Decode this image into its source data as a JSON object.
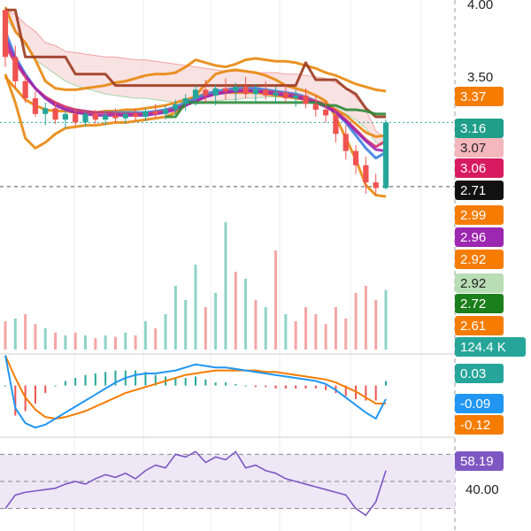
{
  "chart_data": [
    {
      "type": "candlestick",
      "panel": "price",
      "y_tick_labels": [
        "4.00",
        "3.50"
      ],
      "y_ticks": [
        4.0,
        3.5
      ],
      "ylim": [
        2.56,
        4.02
      ],
      "last_price": 3.16,
      "price_line_level": 3.16,
      "dashed_level": 2.71,
      "candles": [
        [
          3.95,
          3.95,
          3.55,
          3.62
        ],
        [
          3.62,
          3.7,
          3.4,
          3.45
        ],
        [
          3.45,
          3.5,
          3.3,
          3.33
        ],
        [
          3.33,
          3.38,
          3.2,
          3.22
        ],
        [
          3.22,
          3.3,
          3.14,
          3.26
        ],
        [
          3.26,
          3.3,
          3.15,
          3.18
        ],
        [
          3.18,
          3.24,
          3.12,
          3.22
        ],
        [
          3.22,
          3.26,
          3.14,
          3.16
        ],
        [
          3.16,
          3.24,
          3.13,
          3.22
        ],
        [
          3.22,
          3.25,
          3.15,
          3.18
        ],
        [
          3.18,
          3.24,
          3.14,
          3.21
        ],
        [
          3.21,
          3.26,
          3.16,
          3.19
        ],
        [
          3.19,
          3.24,
          3.15,
          3.22
        ],
        [
          3.22,
          3.26,
          3.17,
          3.2
        ],
        [
          3.2,
          3.26,
          3.17,
          3.24
        ],
        [
          3.24,
          3.29,
          3.19,
          3.22
        ],
        [
          3.22,
          3.28,
          3.18,
          3.25
        ],
        [
          3.25,
          3.32,
          3.21,
          3.29
        ],
        [
          3.29,
          3.36,
          3.24,
          3.33
        ],
        [
          3.33,
          3.42,
          3.28,
          3.39
        ],
        [
          3.39,
          3.46,
          3.3,
          3.35
        ],
        [
          3.35,
          3.43,
          3.28,
          3.4
        ],
        [
          3.4,
          3.47,
          3.32,
          3.38
        ],
        [
          3.38,
          3.44,
          3.31,
          3.41
        ],
        [
          3.41,
          3.48,
          3.33,
          3.36
        ],
        [
          3.36,
          3.43,
          3.3,
          3.39
        ],
        [
          3.39,
          3.45,
          3.32,
          3.35
        ],
        [
          3.35,
          3.41,
          3.29,
          3.37
        ],
        [
          3.37,
          3.43,
          3.3,
          3.33
        ],
        [
          3.33,
          3.39,
          3.27,
          3.35
        ],
        [
          3.35,
          3.4,
          3.26,
          3.29
        ],
        [
          3.29,
          3.35,
          3.2,
          3.25
        ],
        [
          3.25,
          3.31,
          3.16,
          3.21
        ],
        [
          3.21,
          3.26,
          3.02,
          3.08
        ],
        [
          3.08,
          3.14,
          2.9,
          2.96
        ],
        [
          2.96,
          3.0,
          2.8,
          2.86
        ],
        [
          2.86,
          2.92,
          2.66,
          2.74
        ],
        [
          2.74,
          2.8,
          2.65,
          2.7
        ],
        [
          2.7,
          3.18,
          2.69,
          3.16
        ]
      ],
      "indicator_lines": [
        {
          "color": "#e8870e",
          "values": [
            3.5,
            3.3,
            3.05,
            2.98,
            3.02,
            3.08,
            3.12,
            3.13,
            3.14,
            3.14,
            3.15,
            3.16,
            3.16,
            3.17,
            3.18,
            3.19,
            3.2,
            3.23,
            3.28,
            3.35,
            3.43,
            3.5,
            3.52,
            3.53,
            3.52,
            3.51,
            3.49,
            3.46,
            3.42,
            3.4,
            3.38,
            3.35,
            3.31,
            3.2,
            3.05,
            2.9,
            2.72,
            2.65,
            2.64
          ]
        },
        {
          "color": "#e8870e",
          "values": [
            3.97,
            3.8,
            3.72,
            3.6,
            3.45,
            3.4,
            3.39,
            3.39,
            3.4,
            3.41,
            3.42,
            3.44,
            3.45,
            3.47,
            3.49,
            3.5,
            3.5,
            3.51,
            3.55,
            3.6,
            3.58,
            3.56,
            3.55,
            3.57,
            3.6,
            3.61,
            3.6,
            3.59,
            3.59,
            3.58,
            3.56,
            3.54,
            3.51,
            3.49,
            3.46,
            3.43,
            3.41,
            3.39,
            3.38
          ]
        },
        {
          "color": "#e8870e",
          "values": [
            3.48,
            3.4,
            3.32,
            3.28,
            3.25,
            3.24,
            3.24,
            3.23,
            3.23,
            3.23,
            3.24,
            3.24,
            3.25,
            3.25,
            3.26,
            3.27,
            3.28,
            3.3,
            3.32,
            3.34,
            3.36,
            3.36,
            3.37,
            3.37,
            3.37,
            3.37,
            3.36,
            3.35,
            3.34,
            3.33,
            3.32,
            3.31,
            3.29,
            3.25,
            3.21,
            3.15,
            3.09,
            3.06,
            3.07
          ]
        },
        {
          "color": "#3d7fe0",
          "values": [
            3.8,
            3.62,
            3.5,
            3.4,
            3.33,
            3.29,
            3.26,
            3.25,
            3.24,
            3.23,
            3.23,
            3.23,
            3.23,
            3.23,
            3.23,
            3.24,
            3.25,
            3.27,
            3.3,
            3.33,
            3.36,
            3.38,
            3.39,
            3.4,
            3.4,
            3.4,
            3.39,
            3.38,
            3.37,
            3.36,
            3.34,
            3.31,
            3.28,
            3.23,
            3.16,
            3.07,
            2.98,
            2.91,
            2.95
          ]
        },
        {
          "color": "#d6336c",
          "values": [
            3.7,
            3.58,
            3.48,
            3.4,
            3.34,
            3.3,
            3.27,
            3.25,
            3.24,
            3.23,
            3.23,
            3.22,
            3.22,
            3.22,
            3.22,
            3.23,
            3.24,
            3.26,
            3.28,
            3.31,
            3.34,
            3.36,
            3.38,
            3.38,
            3.39,
            3.38,
            3.38,
            3.37,
            3.36,
            3.35,
            3.33,
            3.31,
            3.28,
            3.24,
            3.18,
            3.11,
            3.04,
            2.99,
            3.03
          ]
        },
        {
          "color": "#9c27b0",
          "values": [
            3.75,
            3.6,
            3.49,
            3.4,
            3.33,
            3.28,
            3.25,
            3.23,
            3.22,
            3.21,
            3.21,
            3.21,
            3.21,
            3.21,
            3.21,
            3.22,
            3.23,
            3.25,
            3.28,
            3.31,
            3.34,
            3.36,
            3.37,
            3.38,
            3.38,
            3.38,
            3.37,
            3.36,
            3.35,
            3.34,
            3.32,
            3.3,
            3.27,
            3.23,
            3.17,
            3.1,
            3.03,
            2.97,
            2.96
          ]
        },
        {
          "color": "#9b3a1f",
          "values": [
            3.95,
            3.95,
            3.62,
            3.62,
            3.62,
            3.62,
            3.62,
            3.5,
            3.5,
            3.5,
            3.5,
            3.42,
            3.42,
            3.42,
            3.42,
            3.42,
            3.42,
            3.42,
            3.42,
            3.42,
            3.42,
            3.42,
            3.42,
            3.42,
            3.42,
            3.42,
            3.42,
            3.42,
            3.42,
            3.42,
            3.58,
            3.46,
            3.46,
            3.46,
            3.4,
            3.36,
            3.26,
            3.2,
            3.2
          ]
        },
        {
          "color": "#2e8b3a",
          "values": [
            null,
            null,
            null,
            null,
            null,
            null,
            null,
            null,
            null,
            null,
            null,
            null,
            null,
            null,
            null,
            null,
            3.2,
            3.2,
            3.3,
            3.3,
            3.3,
            3.3,
            3.3,
            3.3,
            3.3,
            3.3,
            3.3,
            3.3,
            3.3,
            3.3,
            3.3,
            3.3,
            3.28,
            3.28,
            3.25,
            3.25,
            3.24,
            3.22,
            3.22
          ]
        }
      ],
      "cloud": {
        "upper": [
          3.95,
          3.92,
          3.85,
          3.8,
          3.72,
          3.7,
          3.66,
          3.65,
          3.64,
          3.63,
          3.62,
          3.62,
          3.61,
          3.6,
          3.6,
          3.59,
          3.58,
          3.57,
          3.56,
          3.55,
          3.54,
          3.53,
          3.52,
          3.52,
          3.52,
          3.51,
          3.51,
          3.51,
          3.5,
          3.5,
          3.49,
          3.48,
          3.47,
          3.44,
          3.4,
          3.34,
          3.25,
          3.1,
          3.05
        ],
        "lower": [
          3.9,
          3.8,
          3.7,
          3.6,
          3.55,
          3.5,
          3.45,
          3.42,
          3.4,
          3.38,
          3.36,
          3.35,
          3.34,
          3.33,
          3.33,
          3.32,
          3.31,
          3.3,
          3.3,
          3.29,
          3.3,
          3.31,
          3.32,
          3.32,
          3.33,
          3.33,
          3.34,
          3.34,
          3.34,
          3.33,
          3.32,
          3.3,
          3.28,
          3.26,
          3.22,
          3.18,
          3.12,
          3.02,
          3.0
        ]
      }
    },
    {
      "type": "bar",
      "panel": "volume",
      "values": [
        0.2,
        0.22,
        0.25,
        0.18,
        0.15,
        0.12,
        0.1,
        0.12,
        0.1,
        0.08,
        0.1,
        0.09,
        0.12,
        0.1,
        0.2,
        0.15,
        0.25,
        0.45,
        0.35,
        0.6,
        0.3,
        0.4,
        0.9,
        0.55,
        0.5,
        0.35,
        0.3,
        0.7,
        0.25,
        0.2,
        0.3,
        0.25,
        0.18,
        0.3,
        0.22,
        0.4,
        0.45,
        0.35,
        0.42
      ],
      "up": [
        false,
        true,
        false,
        false,
        true,
        false,
        true,
        false,
        true,
        false,
        true,
        false,
        true,
        false,
        true,
        false,
        true,
        true,
        true,
        true,
        false,
        true,
        true,
        false,
        true,
        false,
        true,
        false,
        true,
        false,
        false,
        false,
        false,
        false,
        false,
        false,
        false,
        false,
        true
      ],
      "last_volume_label": "124.4 K"
    },
    {
      "type": "line",
      "panel": "macd",
      "macd": [
        0.2,
        -0.15,
        -0.25,
        -0.28,
        -0.26,
        -0.22,
        -0.18,
        -0.14,
        -0.1,
        -0.06,
        -0.02,
        0.02,
        0.05,
        0.07,
        0.08,
        0.08,
        0.09,
        0.1,
        0.12,
        0.14,
        0.13,
        0.12,
        0.12,
        0.11,
        0.1,
        0.09,
        0.08,
        0.07,
        0.06,
        0.05,
        0.04,
        0.03,
        0.01,
        -0.03,
        -0.08,
        -0.13,
        -0.18,
        -0.22,
        -0.09
      ],
      "signal": [
        0.2,
        0.05,
        -0.08,
        -0.16,
        -0.21,
        -0.22,
        -0.21,
        -0.19,
        -0.17,
        -0.14,
        -0.11,
        -0.08,
        -0.05,
        -0.03,
        -0.01,
        0.01,
        0.03,
        0.05,
        0.07,
        0.08,
        0.09,
        0.1,
        0.1,
        0.1,
        0.1,
        0.1,
        0.09,
        0.09,
        0.08,
        0.07,
        0.06,
        0.05,
        0.04,
        0.02,
        -0.01,
        -0.04,
        -0.08,
        -0.12,
        -0.12
      ],
      "hist": [
        0.0,
        -0.2,
        -0.17,
        -0.12,
        -0.05,
        0.0,
        0.03,
        0.05,
        0.07,
        0.08,
        0.09,
        0.1,
        0.1,
        0.1,
        0.09,
        0.07,
        0.06,
        0.05,
        0.05,
        0.06,
        0.04,
        0.02,
        0.02,
        0.01,
        0.0,
        -0.01,
        -0.01,
        -0.02,
        -0.02,
        -0.02,
        -0.02,
        -0.02,
        -0.03,
        -0.05,
        -0.07,
        -0.09,
        -0.1,
        -0.1,
        0.03
      ],
      "ylim": [
        -0.32,
        0.18
      ]
    },
    {
      "type": "line",
      "panel": "rsi",
      "values": [
        30,
        40,
        42,
        43,
        44,
        45,
        48,
        50,
        48,
        52,
        55,
        53,
        56,
        52,
        58,
        62,
        60,
        70,
        68,
        72,
        64,
        68,
        66,
        72,
        60,
        62,
        58,
        56,
        52,
        50,
        48,
        46,
        44,
        42,
        40,
        30,
        25,
        35,
        58
      ],
      "y_tick_labels": [
        "40.00"
      ],
      "y_ticks": [
        40
      ],
      "levels": [
        30,
        50,
        70
      ],
      "ylim": [
        20,
        80
      ],
      "last_value": 58.19
    }
  ],
  "badges": [
    {
      "text": "3.37",
      "bg": "#f57c00",
      "fg": "#ffffff",
      "value": 3.37
    },
    {
      "text": "3.16",
      "bg": "#1f9e89",
      "fg": "#ffffff",
      "value": 3.16
    },
    {
      "text": "3.07",
      "bg": "#f4b7bd",
      "fg": "#222222",
      "value": 3.07
    },
    {
      "text": "3.06",
      "bg": "#d81b60",
      "fg": "#ffffff",
      "value": 3.06
    },
    {
      "text": "2.71",
      "bg": "#111111",
      "fg": "#ffffff",
      "value": 2.71
    },
    {
      "text": "2.99",
      "bg": "#f57c00",
      "fg": "#ffffff",
      "value": 2.99
    },
    {
      "text": "2.96",
      "bg": "#9c27b0",
      "fg": "#ffffff",
      "value": 2.96
    },
    {
      "text": "2.92",
      "bg": "#f57c00",
      "fg": "#ffffff",
      "value": 2.92
    },
    {
      "text": "2.92",
      "bg": "#b9ddb4",
      "fg": "#222222",
      "value": 2.92
    },
    {
      "text": "2.72",
      "bg": "#1b7f1b",
      "fg": "#ffffff",
      "value": 2.72
    },
    {
      "text": "2.61",
      "bg": "#f57c00",
      "fg": "#ffffff",
      "value": 2.61
    },
    {
      "text": "124.4 K",
      "bg": "#26a69a",
      "fg": "#ffffff",
      "value": 124.4
    },
    {
      "text": "0.03",
      "bg": "#26a69a",
      "fg": "#ffffff",
      "value": 0.03
    },
    {
      "text": "-0.09",
      "bg": "#2196f3",
      "fg": "#ffffff",
      "value": -0.09
    },
    {
      "text": "-0.12",
      "bg": "#f57c00",
      "fg": "#ffffff",
      "value": -0.12
    },
    {
      "text": "58.19",
      "bg": "#7e57c2",
      "fg": "#ffffff",
      "value": 58.19
    }
  ],
  "colors": {
    "up": "#26a69a",
    "down": "#ef5350",
    "rsi_line": "#7e57c2",
    "rsi_band": "#ede7f6",
    "macd_line": "#2196f3",
    "signal_line": "#f57c00",
    "cloud_fill": "#f6d6d6"
  }
}
